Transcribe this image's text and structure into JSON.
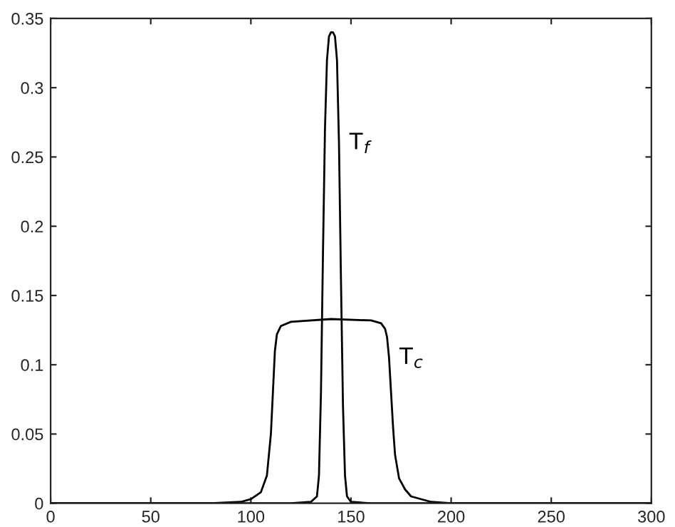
{
  "chart_data": {
    "type": "line",
    "xlim": [
      0,
      300
    ],
    "xticks": [
      0,
      50,
      100,
      150,
      200,
      250,
      300
    ],
    "ylim": [
      0,
      0.35
    ],
    "yticks": [
      0,
      0.05,
      0.1,
      0.15,
      0.2,
      0.25,
      0.3,
      0.35
    ],
    "grid": false,
    "legend": false,
    "marker": "none",
    "line_style": "solid",
    "series": [
      {
        "name": "T$_{f}$",
        "color": "#000000",
        "x": [
          0,
          120,
          130,
          133,
          134,
          135,
          136,
          137,
          138,
          139,
          140,
          141,
          142,
          143,
          144,
          145,
          146,
          147,
          148,
          150,
          160,
          300
        ],
        "values": [
          0,
          0,
          0.001,
          0.005,
          0.02,
          0.08,
          0.18,
          0.27,
          0.32,
          0.337,
          0.34,
          0.34,
          0.337,
          0.32,
          0.26,
          0.16,
          0.07,
          0.02,
          0.005,
          0.001,
          0,
          0
        ]
      },
      {
        "name": "T$_{c}$",
        "color": "#000000",
        "x": [
          0,
          80,
          95,
          100,
          105,
          108,
          110,
          111,
          112,
          113,
          115,
          120,
          140,
          160,
          165,
          167,
          168,
          169,
          170,
          171,
          172,
          174,
          177,
          180,
          190,
          200,
          300
        ],
        "values": [
          0,
          0,
          0.001,
          0.003,
          0.008,
          0.02,
          0.05,
          0.08,
          0.11,
          0.122,
          0.128,
          0.131,
          0.133,
          0.132,
          0.13,
          0.126,
          0.12,
          0.105,
          0.08,
          0.055,
          0.035,
          0.018,
          0.01,
          0.005,
          0.001,
          0,
          0
        ]
      }
    ]
  }
}
